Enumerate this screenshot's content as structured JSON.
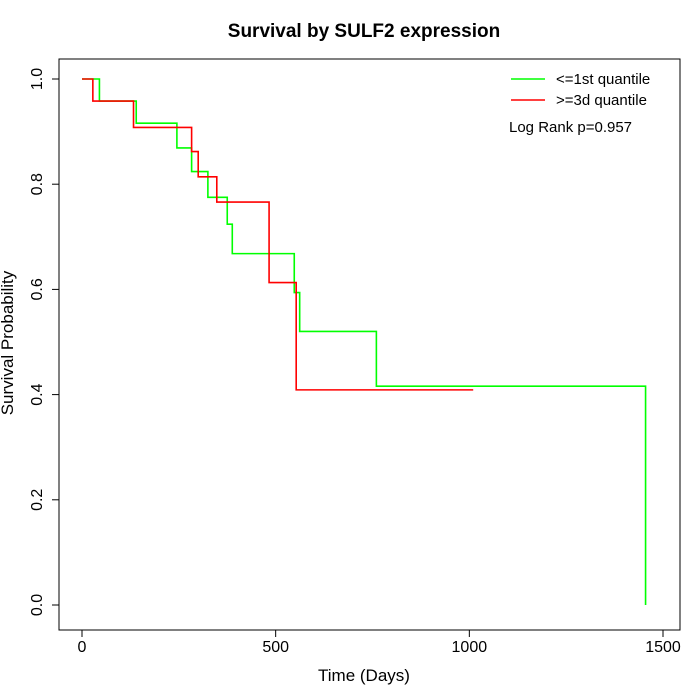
{
  "chart_data": {
    "type": "line",
    "title": "Survival by SULF2 expression",
    "xlabel": "Time (Days)",
    "ylabel": "Survival Probability",
    "xlim": [
      0,
      1500
    ],
    "ylim": [
      0,
      1
    ],
    "x_ticks": [
      0,
      500,
      1000,
      1500
    ],
    "y_ticks": [
      0.0,
      0.2,
      0.4,
      0.6,
      0.8,
      1.0
    ],
    "x_tick_labels": [
      "0",
      "500",
      "1000",
      "1500"
    ],
    "y_tick_labels": [
      "0.0",
      "0.2",
      "0.4",
      "0.6",
      "0.8",
      "1.0"
    ],
    "grid": false,
    "legend_position": "top-right",
    "annotation": "Log Rank p=0.957",
    "series": [
      {
        "name": "<=1st quantile",
        "color": "#00ff00",
        "step": true,
        "x": [
          0,
          45,
          140,
          245,
          283,
          325,
          375,
          388,
          548,
          562,
          760,
          1455,
          1455
        ],
        "y": [
          1.0,
          0.958,
          0.916,
          0.869,
          0.824,
          0.775,
          0.724,
          0.668,
          0.594,
          0.52,
          0.416,
          0.416,
          0.0
        ]
      },
      {
        "name": ">=3d quantile",
        "color": "#ff0000",
        "step": true,
        "x": [
          0,
          28,
          133,
          283,
          300,
          348,
          483,
          553,
          1010
        ],
        "y": [
          1.0,
          0.958,
          0.908,
          0.862,
          0.814,
          0.766,
          0.613,
          0.409,
          0.409
        ]
      }
    ]
  }
}
